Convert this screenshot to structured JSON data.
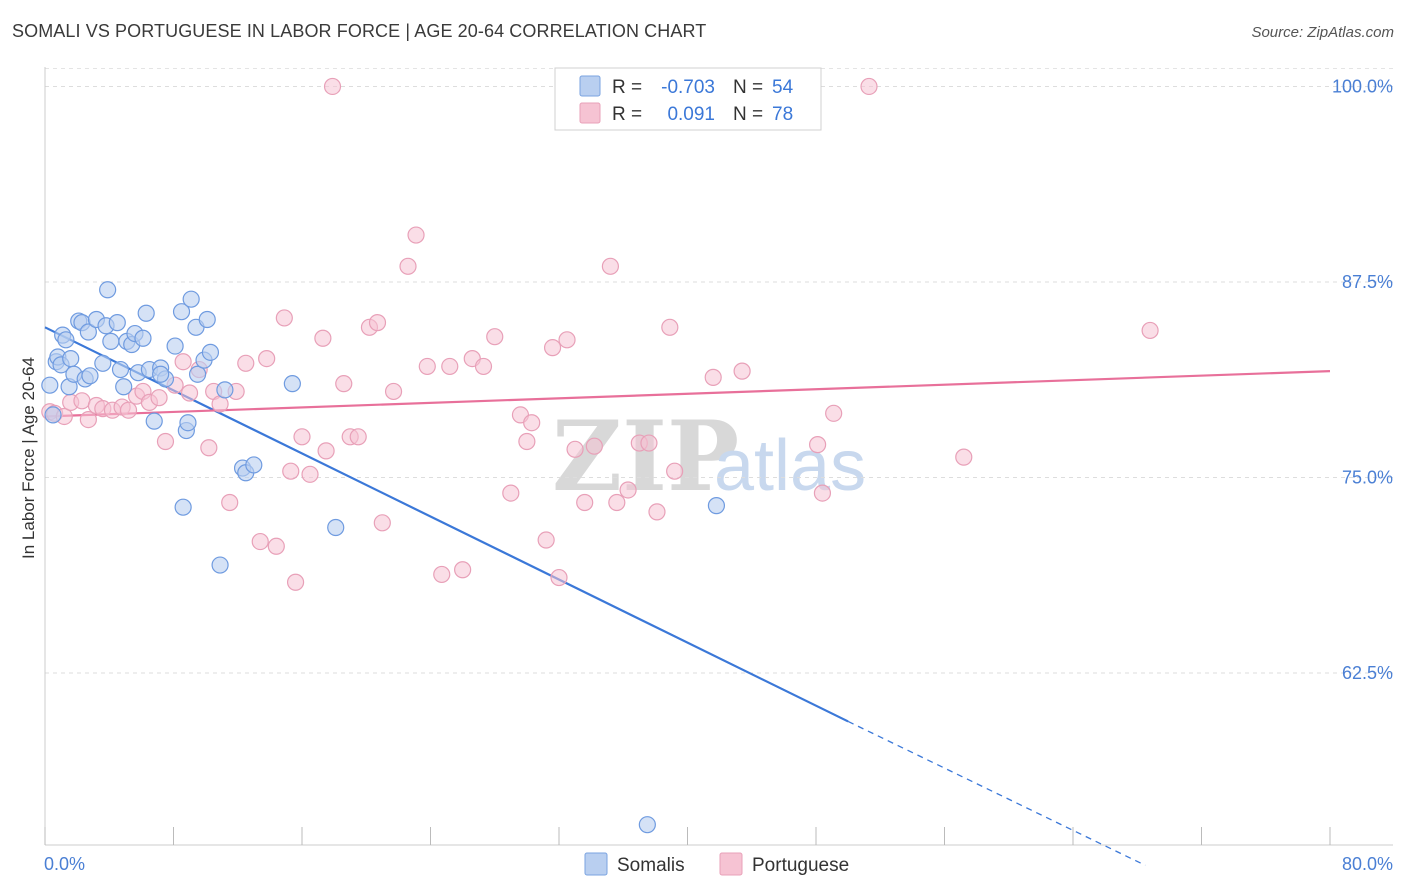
{
  "title": "SOMALI VS PORTUGUESE IN LABOR FORCE | AGE 20-64 CORRELATION CHART",
  "source": "Source: ZipAtlas.com",
  "watermark": {
    "zip": "ZIP",
    "atlas": "atlas"
  },
  "colors": {
    "somali": "#3b78d8",
    "somali_fill": "#b9cff0",
    "portuguese": "#e8709a",
    "portuguese_fill": "#f6c3d3"
  },
  "legend": {
    "r_label": "R =",
    "n_label": "N =",
    "somali": {
      "r": "-0.703",
      "n": "54"
    },
    "portuguese": {
      "r": "0.091",
      "n": "78"
    }
  },
  "bottom_legend": {
    "somali": "Somalis",
    "portuguese": "Portuguese"
  },
  "chart_data": {
    "type": "scatter",
    "title": "SOMALI VS PORTUGUESE IN LABOR FORCE | AGE 20-64 CORRELATION CHART",
    "xlabel": "",
    "ylabel": "In Labor Force | Age 20-64",
    "xlim": [
      0,
      80
    ],
    "ylim": [
      51.5,
      101.5
    ],
    "x_tick_labels": [
      "0.0%",
      "80.0%"
    ],
    "y_ticks": [
      62.5,
      75.0,
      87.5,
      100.0
    ],
    "y_tick_labels": [
      "62.5%",
      "75.0%",
      "87.5%",
      "100.0%"
    ],
    "series": [
      {
        "name": "Somalis",
        "r": -0.703,
        "n": 54,
        "trend": {
          "x0": 0,
          "y0": 84.6,
          "x1": 50,
          "y1": 59.4,
          "dash_to_x": 68.5,
          "dash_to_y": 50.2
        },
        "points": [
          [
            0.3,
            80.9
          ],
          [
            0.5,
            79.0
          ],
          [
            0.7,
            82.4
          ],
          [
            0.8,
            82.7
          ],
          [
            1.0,
            82.2
          ],
          [
            1.1,
            84.1
          ],
          [
            1.3,
            83.8
          ],
          [
            1.5,
            80.8
          ],
          [
            1.6,
            82.6
          ],
          [
            1.8,
            81.6
          ],
          [
            2.1,
            85.0
          ],
          [
            2.3,
            84.9
          ],
          [
            2.5,
            81.3
          ],
          [
            2.7,
            84.3
          ],
          [
            2.8,
            81.5
          ],
          [
            3.2,
            85.1
          ],
          [
            3.6,
            82.3
          ],
          [
            3.8,
            84.7
          ],
          [
            3.9,
            87.0
          ],
          [
            4.1,
            83.7
          ],
          [
            4.5,
            84.9
          ],
          [
            4.7,
            81.9
          ],
          [
            4.9,
            80.8
          ],
          [
            5.1,
            83.7
          ],
          [
            5.4,
            83.5
          ],
          [
            5.6,
            84.2
          ],
          [
            5.8,
            81.7
          ],
          [
            6.1,
            83.9
          ],
          [
            6.3,
            85.5
          ],
          [
            6.5,
            81.9
          ],
          [
            6.8,
            78.6
          ],
          [
            7.2,
            82.0
          ],
          [
            7.5,
            81.3
          ],
          [
            8.1,
            83.4
          ],
          [
            8.5,
            85.6
          ],
          [
            8.6,
            73.1
          ],
          [
            8.8,
            78.0
          ],
          [
            8.9,
            78.5
          ],
          [
            9.1,
            86.4
          ],
          [
            9.4,
            84.6
          ],
          [
            9.5,
            81.6
          ],
          [
            9.9,
            82.5
          ],
          [
            10.1,
            85.1
          ],
          [
            10.3,
            83.0
          ],
          [
            10.9,
            69.4
          ],
          [
            11.2,
            80.6
          ],
          [
            12.3,
            75.6
          ],
          [
            12.5,
            75.3
          ],
          [
            13.0,
            75.8
          ],
          [
            15.4,
            81.0
          ],
          [
            18.1,
            71.8
          ],
          [
            37.5,
            52.8
          ],
          [
            41.8,
            73.2
          ],
          [
            7.2,
            81.6
          ]
        ]
      },
      {
        "name": "Portuguese",
        "r": 0.091,
        "n": 78,
        "trend": {
          "x0": 0,
          "y0": 78.9,
          "x1": 80,
          "y1": 81.8
        },
        "points": [
          [
            0.3,
            79.2
          ],
          [
            0.6,
            79.1
          ],
          [
            1.2,
            78.9
          ],
          [
            1.6,
            79.8
          ],
          [
            2.3,
            79.9
          ],
          [
            2.7,
            78.7
          ],
          [
            3.2,
            79.6
          ],
          [
            3.6,
            79.4
          ],
          [
            4.2,
            79.3
          ],
          [
            4.8,
            79.5
          ],
          [
            5.2,
            79.3
          ],
          [
            5.7,
            80.2
          ],
          [
            6.1,
            80.5
          ],
          [
            6.5,
            79.8
          ],
          [
            7.1,
            80.1
          ],
          [
            7.5,
            77.3
          ],
          [
            8.1,
            80.9
          ],
          [
            8.6,
            82.4
          ],
          [
            9.0,
            80.4
          ],
          [
            9.6,
            81.9
          ],
          [
            10.2,
            76.9
          ],
          [
            10.5,
            80.5
          ],
          [
            10.9,
            79.7
          ],
          [
            11.5,
            73.4
          ],
          [
            11.9,
            80.5
          ],
          [
            12.5,
            82.3
          ],
          [
            13.4,
            70.9
          ],
          [
            13.8,
            82.6
          ],
          [
            14.4,
            70.6
          ],
          [
            14.9,
            85.2
          ],
          [
            15.3,
            75.4
          ],
          [
            15.6,
            68.3
          ],
          [
            16.0,
            77.6
          ],
          [
            16.5,
            75.2
          ],
          [
            17.3,
            83.9
          ],
          [
            17.5,
            76.7
          ],
          [
            18.6,
            81.0
          ],
          [
            19.0,
            77.6
          ],
          [
            19.5,
            77.6
          ],
          [
            20.2,
            84.6
          ],
          [
            20.7,
            84.9
          ],
          [
            21.0,
            72.1
          ],
          [
            21.7,
            80.5
          ],
          [
            22.6,
            88.5
          ],
          [
            23.1,
            90.5
          ],
          [
            23.8,
            82.1
          ],
          [
            24.7,
            68.8
          ],
          [
            25.2,
            82.1
          ],
          [
            26.0,
            69.1
          ],
          [
            26.6,
            82.6
          ],
          [
            27.3,
            82.1
          ],
          [
            28.0,
            84.0
          ],
          [
            29.0,
            74.0
          ],
          [
            29.6,
            79.0
          ],
          [
            30.0,
            77.3
          ],
          [
            30.3,
            78.5
          ],
          [
            31.2,
            71.0
          ],
          [
            31.6,
            83.3
          ],
          [
            32.0,
            68.6
          ],
          [
            32.5,
            83.8
          ],
          [
            33.0,
            76.8
          ],
          [
            33.6,
            73.4
          ],
          [
            34.2,
            77.0
          ],
          [
            35.2,
            88.5
          ],
          [
            35.6,
            73.4
          ],
          [
            36.3,
            74.2
          ],
          [
            37.0,
            77.2
          ],
          [
            37.6,
            77.2
          ],
          [
            38.1,
            72.8
          ],
          [
            38.9,
            84.6
          ],
          [
            39.2,
            75.4
          ],
          [
            41.6,
            81.4
          ],
          [
            43.4,
            81.8
          ],
          [
            48.1,
            77.1
          ],
          [
            48.4,
            74.0
          ],
          [
            57.2,
            76.3
          ],
          [
            68.8,
            84.4
          ],
          [
            49.1,
            79.1
          ]
        ],
        "outliers": [
          [
            17.9,
            100.0
          ],
          [
            51.3,
            100.0
          ]
        ]
      }
    ]
  }
}
